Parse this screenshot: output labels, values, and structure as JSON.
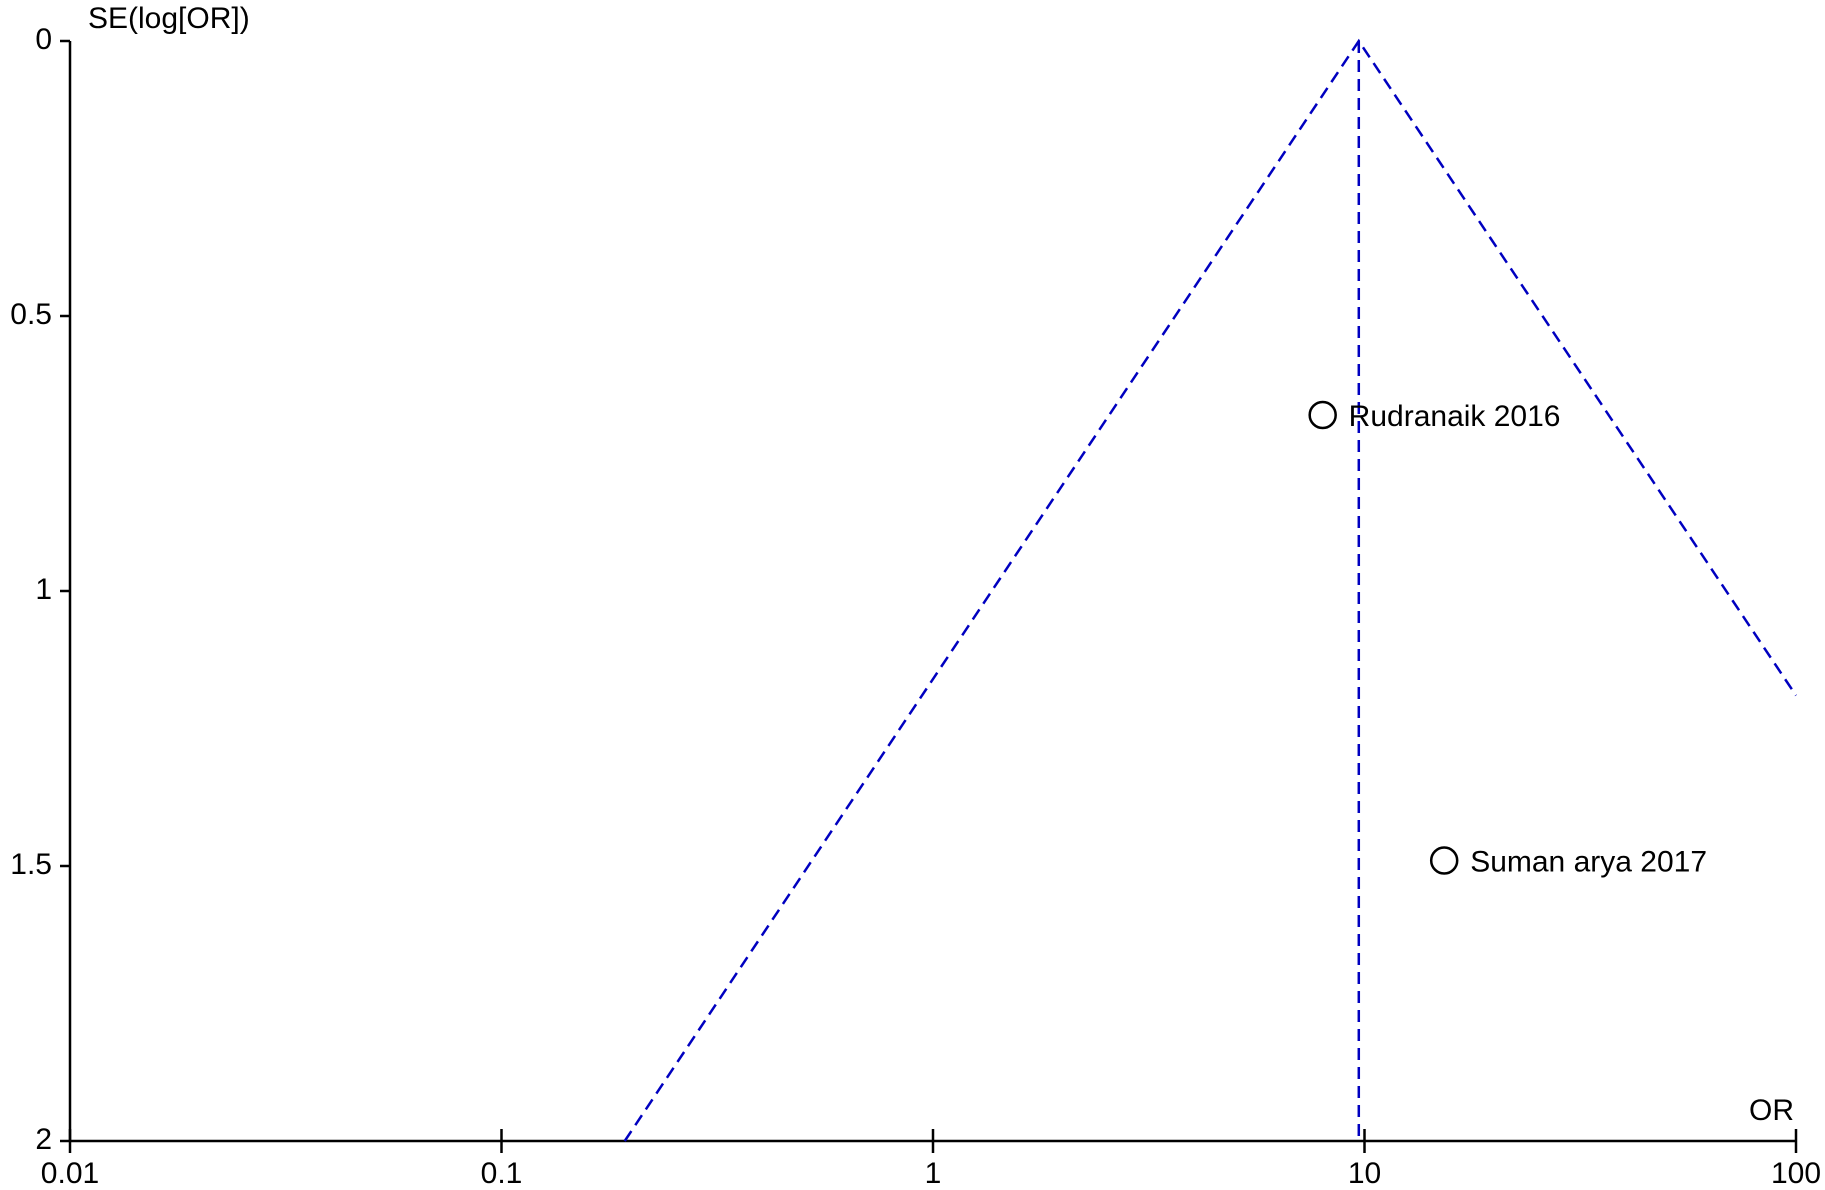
{
  "chart_data": {
    "type": "scatter",
    "x_label": "OR",
    "y_label": "SE(log[OR])",
    "x_scale": "log",
    "y_reversed": true,
    "xlim": [
      0.01,
      100
    ],
    "ylim": [
      0,
      2
    ],
    "xticks": [
      0.01,
      0.1,
      1,
      10,
      100
    ],
    "yticks": [
      0,
      0.5,
      1,
      1.5,
      2
    ],
    "points": {
      "labels": [
        "Rudranaik 2016",
        "Suman arya 2017"
      ],
      "x": [
        8.0,
        15.3
      ],
      "y": [
        0.68,
        1.49
      ],
      "color": "#000000"
    },
    "lines": [
      {
        "x": [
          0.193,
          9.7,
          100
        ],
        "y": [
          2,
          0,
          1.19
        ],
        "color": "#0000c0",
        "dashed": true
      },
      {
        "x": [
          9.7,
          9.7
        ],
        "y": [
          0,
          2
        ],
        "color": "#0000c0",
        "dashed": true
      }
    ]
  }
}
